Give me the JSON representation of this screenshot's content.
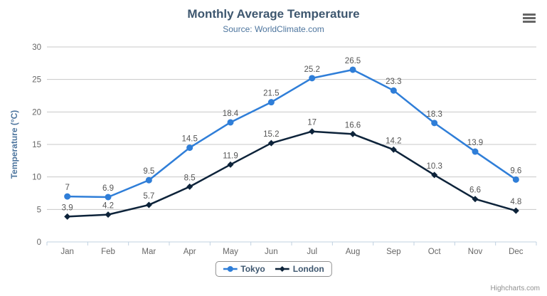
{
  "header": {
    "title": "Monthly Average Temperature",
    "subtitle": "Source: WorldClimate.com"
  },
  "toolbar": {
    "context_menu_icon": "hamburger-icon"
  },
  "chart_data": {
    "type": "line",
    "title": "Monthly Average Temperature",
    "subtitle": "Source: WorldClimate.com",
    "categories": [
      "Jan",
      "Feb",
      "Mar",
      "Apr",
      "May",
      "Jun",
      "Jul",
      "Aug",
      "Sep",
      "Oct",
      "Nov",
      "Dec"
    ],
    "series": [
      {
        "name": "Tokyo",
        "color": "#2f7ed8",
        "marker": "circle",
        "values": [
          7,
          6.9,
          9.5,
          14.5,
          18.4,
          21.5,
          25.2,
          26.5,
          23.3,
          18.3,
          13.9,
          9.6
        ]
      },
      {
        "name": "London",
        "color": "#0d233a",
        "marker": "diamond",
        "values": [
          3.9,
          4.2,
          5.7,
          8.5,
          11.9,
          15.2,
          17,
          16.6,
          14.2,
          10.3,
          6.6,
          4.8
        ]
      }
    ],
    "xlabel": "",
    "ylabel": "Temperature (°C)",
    "ylim": [
      0,
      30
    ],
    "yticks": [
      0,
      5,
      10,
      15,
      20,
      25,
      30
    ],
    "grid": true,
    "data_labels": true,
    "legend_position": "bottom"
  },
  "styles": {
    "grid_color": "#c8c8c8",
    "axis_line_color": "#c0d0e0",
    "tick_label_color": "#666666",
    "data_label_color": "#555555",
    "axis_title_color": "#4d759e"
  },
  "credits": "Highcharts.com"
}
